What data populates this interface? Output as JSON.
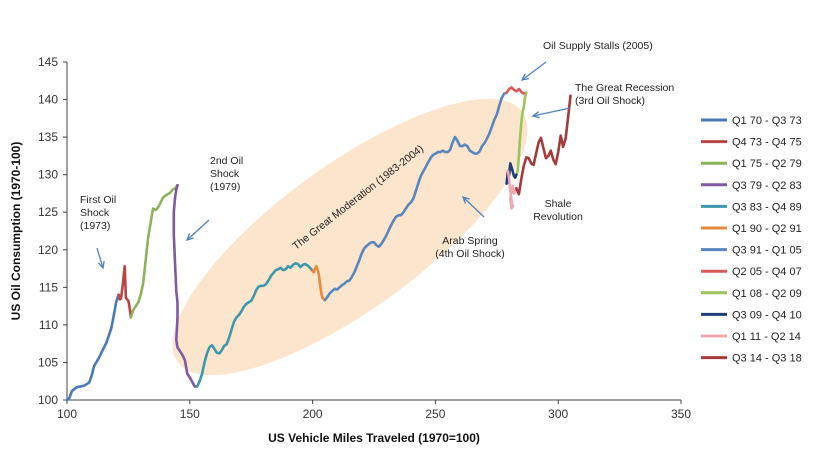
{
  "chart_data": {
    "type": "line",
    "xlabel": "US Vehicle Miles Traveled (1970=100)",
    "ylabel": "US Oil Consumption (1970-100)",
    "xlim": [
      100,
      350
    ],
    "ylim": [
      100,
      145
    ],
    "xticks": [
      100,
      150,
      200,
      250,
      300,
      350
    ],
    "yticks": [
      100,
      105,
      110,
      115,
      120,
      125,
      130,
      135,
      140,
      145
    ],
    "grid": false,
    "legend_position": "right",
    "series": [
      {
        "name": "Q1 70 - Q3 73",
        "color": "#4a79b4",
        "points": [
          [
            100,
            100
          ],
          [
            101,
            100.3
          ],
          [
            102,
            101.2
          ],
          [
            104,
            101.7
          ],
          [
            107,
            101.9
          ],
          [
            109,
            102.3
          ],
          [
            110,
            103.2
          ],
          [
            111,
            104.5
          ],
          [
            113,
            105.6
          ],
          [
            114,
            106.3
          ],
          [
            116,
            107.6
          ],
          [
            118,
            109.5
          ],
          [
            119,
            111.2
          ],
          [
            120,
            113.0
          ],
          [
            121,
            114.0
          ]
        ]
      },
      {
        "name": "Q4 73 - Q4 75",
        "color": "#b94545",
        "points": [
          [
            121,
            114.0
          ],
          [
            121.5,
            113.4
          ],
          [
            122,
            113.5
          ],
          [
            122.5,
            114.8
          ],
          [
            123,
            116.3
          ],
          [
            123.5,
            117.8
          ],
          [
            124,
            113.6
          ],
          [
            125,
            113.2
          ],
          [
            125.5,
            112.3
          ],
          [
            126,
            111.0
          ]
        ]
      },
      {
        "name": "Q1 75 - Q2 79",
        "color": "#8cb35a",
        "points": [
          [
            126,
            111.0
          ],
          [
            127,
            112.0
          ],
          [
            129,
            113.0
          ],
          [
            130,
            114.0
          ],
          [
            131,
            115.5
          ],
          [
            132,
            118.5
          ],
          [
            133,
            121.5
          ],
          [
            134,
            123.5
          ],
          [
            135,
            125.5
          ],
          [
            136,
            125.3
          ],
          [
            137,
            125.6
          ],
          [
            138,
            126.2
          ],
          [
            139,
            126.9
          ],
          [
            140,
            127.2
          ],
          [
            141,
            127.4
          ],
          [
            142,
            127.6
          ],
          [
            143,
            128.0
          ],
          [
            144,
            128.2
          ],
          [
            145,
            128.6
          ]
        ]
      },
      {
        "name": "Q3 79 - Q2 83",
        "color": "#7d5aa2",
        "points": [
          [
            145,
            128.6
          ],
          [
            144.5,
            128.0
          ],
          [
            144,
            127.0
          ],
          [
            143.5,
            125.0
          ],
          [
            143.5,
            122.0
          ],
          [
            144,
            118.0
          ],
          [
            144.5,
            114.5
          ],
          [
            145,
            113.0
          ],
          [
            145,
            111.0
          ],
          [
            144.5,
            108.0
          ],
          [
            145,
            107.0
          ],
          [
            146,
            106.5
          ],
          [
            147,
            106.0
          ],
          [
            148,
            105.3
          ],
          [
            149,
            103.5
          ],
          [
            150,
            103.0
          ],
          [
            151,
            102.4
          ],
          [
            152,
            101.8
          ],
          [
            153,
            101.8
          ]
        ]
      },
      {
        "name": "Q3 83 - Q4 89",
        "color": "#3e97ad",
        "points": [
          [
            153,
            101.8
          ],
          [
            154,
            102.5
          ],
          [
            155,
            103.5
          ],
          [
            156,
            105.0
          ],
          [
            157,
            106.2
          ],
          [
            158,
            107.0
          ],
          [
            159,
            107.3
          ],
          [
            160,
            106.8
          ],
          [
            161,
            106.3
          ],
          [
            162,
            106.2
          ],
          [
            163,
            106.6
          ],
          [
            164,
            107.2
          ],
          [
            165,
            107.4
          ],
          [
            166,
            108.3
          ],
          [
            167,
            109.4
          ],
          [
            168,
            110.4
          ],
          [
            169,
            111.0
          ],
          [
            170,
            111.3
          ],
          [
            171,
            111.8
          ],
          [
            172,
            112.4
          ],
          [
            173,
            112.8
          ],
          [
            174,
            113.0
          ],
          [
            175,
            113.2
          ],
          [
            176,
            113.8
          ],
          [
            177,
            114.6
          ],
          [
            178,
            115.1
          ],
          [
            179,
            115.2
          ],
          [
            180,
            115.2
          ],
          [
            181,
            115.4
          ],
          [
            182,
            115.9
          ],
          [
            183,
            116.5
          ],
          [
            184,
            116.9
          ],
          [
            185,
            117.3
          ],
          [
            186,
            117.4
          ],
          [
            187,
            117.6
          ],
          [
            188,
            117.3
          ],
          [
            189,
            117.4
          ],
          [
            190,
            117.8
          ],
          [
            191,
            117.6
          ],
          [
            192,
            118.0
          ],
          [
            193,
            118.2
          ],
          [
            194,
            118.1
          ],
          [
            195,
            117.7
          ],
          [
            196,
            118.0
          ],
          [
            197,
            118.1
          ],
          [
            198,
            117.9
          ],
          [
            199,
            117.6
          ],
          [
            200,
            117.2
          ]
        ]
      },
      {
        "name": "Q1 90 - Q2 91",
        "color": "#e8883a",
        "points": [
          [
            200,
            117.2
          ],
          [
            200.5,
            117.0
          ],
          [
            201,
            117.5
          ],
          [
            201.5,
            117.8
          ],
          [
            202,
            117.4
          ],
          [
            202.5,
            116.8
          ],
          [
            203,
            115.5
          ],
          [
            203.5,
            114.3
          ],
          [
            204,
            113.6
          ],
          [
            205,
            113.3
          ]
        ]
      },
      {
        "name": "Q3 91 - Q1 05",
        "color": "#5a86bf",
        "points": [
          [
            205,
            113.3
          ],
          [
            206,
            113.7
          ],
          [
            207,
            114.2
          ],
          [
            208,
            114.5
          ],
          [
            209,
            114.8
          ],
          [
            210,
            114.7
          ],
          [
            211,
            115.0
          ],
          [
            212,
            115.3
          ],
          [
            213,
            115.5
          ],
          [
            214,
            115.8
          ],
          [
            215,
            115.9
          ],
          [
            216,
            116.4
          ],
          [
            217,
            117.0
          ],
          [
            218,
            117.8
          ],
          [
            219,
            118.6
          ],
          [
            220,
            119.5
          ],
          [
            221,
            120.2
          ],
          [
            222,
            120.5
          ],
          [
            223,
            120.8
          ],
          [
            224,
            121.0
          ],
          [
            225,
            121.0
          ],
          [
            226,
            120.6
          ],
          [
            227,
            120.4
          ],
          [
            228,
            120.8
          ],
          [
            229,
            121.3
          ],
          [
            230,
            121.9
          ],
          [
            231,
            122.6
          ],
          [
            232,
            123.3
          ],
          [
            233,
            123.9
          ],
          [
            234,
            124.4
          ],
          [
            235,
            124.6
          ],
          [
            236,
            124.6
          ],
          [
            237,
            125.0
          ],
          [
            238,
            125.5
          ],
          [
            239,
            126.0
          ],
          [
            240,
            126.3
          ],
          [
            241,
            126.8
          ],
          [
            242,
            127.8
          ],
          [
            243,
            128.8
          ],
          [
            244,
            129.8
          ],
          [
            245,
            130.4
          ],
          [
            246,
            131.0
          ],
          [
            247,
            131.6
          ],
          [
            248,
            132.2
          ],
          [
            249,
            132.6
          ],
          [
            250,
            132.8
          ],
          [
            251,
            133.0
          ],
          [
            252,
            133.0
          ],
          [
            253,
            133.2
          ],
          [
            254,
            133.0
          ],
          [
            255,
            133.0
          ],
          [
            256,
            133.3
          ],
          [
            257,
            134.3
          ],
          [
            258,
            135.0
          ],
          [
            259,
            134.5
          ],
          [
            260,
            133.8
          ],
          [
            261,
            133.8
          ],
          [
            262,
            134.0
          ],
          [
            263,
            133.8
          ],
          [
            264,
            133.2
          ],
          [
            265,
            133.0
          ],
          [
            266,
            132.8
          ],
          [
            267,
            132.8
          ],
          [
            268,
            133.1
          ],
          [
            269,
            133.8
          ],
          [
            270,
            134.2
          ],
          [
            271,
            134.8
          ],
          [
            272,
            135.5
          ],
          [
            273,
            136.4
          ],
          [
            274,
            137.3
          ],
          [
            275,
            138.0
          ],
          [
            276,
            139.2
          ],
          [
            277,
            140.2
          ],
          [
            278,
            140.8
          ],
          [
            279,
            140.9
          ]
        ]
      },
      {
        "name": "Q2 05 - Q4 07",
        "color": "#d95a5a",
        "points": [
          [
            279,
            140.9
          ],
          [
            280,
            141.4
          ],
          [
            281,
            141.6
          ],
          [
            282,
            141.3
          ],
          [
            283,
            141.1
          ],
          [
            284,
            141.4
          ],
          [
            285,
            141.0
          ],
          [
            286,
            140.8
          ],
          [
            287,
            140.9
          ]
        ]
      },
      {
        "name": "Q1 08 - Q2 09",
        "color": "#9cc45a",
        "points": [
          [
            287,
            140.9
          ],
          [
            286.5,
            140.3
          ],
          [
            286,
            139.0
          ],
          [
            285.5,
            138.3
          ],
          [
            285,
            137.0
          ],
          [
            284.5,
            135.0
          ],
          [
            284,
            132.5
          ],
          [
            283.5,
            130.5
          ],
          [
            283,
            130.0
          ]
        ]
      },
      {
        "name": "Q3 09 - Q4 10",
        "color": "#1f3f7a",
        "points": [
          [
            283,
            130.0
          ],
          [
            282.5,
            129.6
          ],
          [
            282,
            129.8
          ],
          [
            281.5,
            130.4
          ],
          [
            281,
            131.0
          ],
          [
            280.5,
            131.5
          ],
          [
            280,
            130.0
          ],
          [
            279.5,
            129.0
          ],
          [
            279,
            128.8
          ],
          [
            279.5,
            130.5
          ]
        ]
      },
      {
        "name": "Q1 11 - Q2 14",
        "color": "#f0a8ae",
        "points": [
          [
            279.5,
            130.5
          ],
          [
            280,
            129.5
          ],
          [
            280.5,
            128.0
          ],
          [
            281,
            126.5
          ],
          [
            281.5,
            125.8
          ],
          [
            281,
            125.5
          ],
          [
            280.5,
            126.8
          ],
          [
            281,
            127.8
          ],
          [
            281.5,
            128.5
          ],
          [
            282,
            127.5
          ],
          [
            282.5,
            127.8
          ],
          [
            283,
            128.2
          ]
        ]
      },
      {
        "name": "Q3 14 - Q3 18",
        "color": "#a53a3a",
        "points": [
          [
            283,
            128.2
          ],
          [
            284,
            127.4
          ],
          [
            285,
            129.5
          ],
          [
            286,
            131.2
          ],
          [
            287,
            132.3
          ],
          [
            288,
            132.2
          ],
          [
            289,
            131.5
          ],
          [
            290,
            131.3
          ],
          [
            291,
            132.8
          ],
          [
            292,
            134.3
          ],
          [
            293,
            134.9
          ],
          [
            294,
            133.5
          ],
          [
            295,
            132.2
          ],
          [
            296,
            132.5
          ],
          [
            297,
            133.2
          ],
          [
            298,
            132.0
          ],
          [
            299,
            131.4
          ],
          [
            300,
            133.0
          ],
          [
            301,
            135.2
          ],
          [
            302,
            133.7
          ],
          [
            303,
            134.8
          ],
          [
            304,
            137.5
          ],
          [
            305,
            140.5
          ]
        ]
      }
    ],
    "annotations": [
      {
        "text": [
          "First Oil",
          "Shock",
          "(1973)"
        ]
      },
      {
        "text": [
          "2nd Oil",
          "Shock",
          "(1979)"
        ]
      },
      {
        "text": [
          "The Great Moderation (1983-2004)"
        ]
      },
      {
        "text": [
          "Arab Spring",
          "(4th Oil Shock)"
        ]
      },
      {
        "text": [
          "Oil Supply Stalls (2005)"
        ]
      },
      {
        "text": [
          "The Great Recession",
          "(3rd Oil Shock)"
        ]
      },
      {
        "text": [
          "Shale",
          "Revolution"
        ]
      }
    ],
    "shaded_region_color": "#fbe5cc",
    "arrow_color": "#4f81bd"
  }
}
